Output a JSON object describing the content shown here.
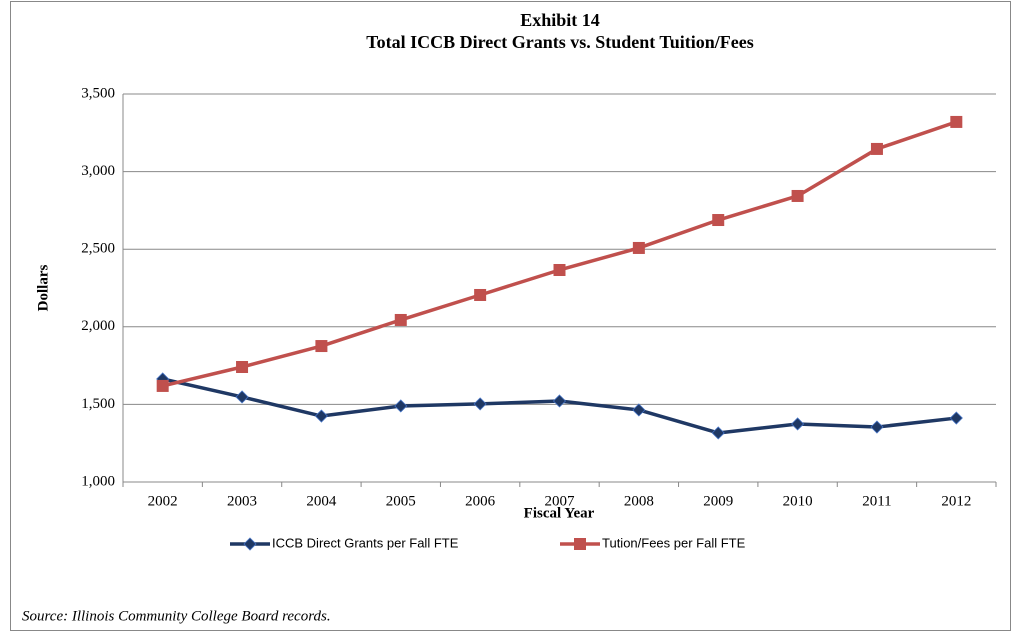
{
  "chart_data": {
    "type": "line",
    "title": "Exhibit 14",
    "subtitle": "Total ICCB Direct Grants vs. Student Tuition/Fees",
    "x_label": "Fiscal Year",
    "y_label": "Dollars",
    "source": "Source:  Illinois Community College Board records.",
    "categories": [
      "2002",
      "2003",
      "2004",
      "2005",
      "2006",
      "2007",
      "2008",
      "2009",
      "2010",
      "2011",
      "2012"
    ],
    "series": [
      {
        "name": "ICCB Direct Grants  per Fall FTE",
        "color": "#1f3864",
        "marker": "diamond",
        "values": [
          1664,
          1548,
          1425,
          1490,
          1503,
          1522,
          1464,
          1316,
          1374,
          1354,
          1412
        ]
      },
      {
        "name": "Tution/Fees per Fall FTE",
        "color": "#c0504d",
        "marker": "square",
        "values": [
          1619,
          1741,
          1876,
          2044,
          2205,
          2366,
          2508,
          2688,
          2843,
          3146,
          3320
        ]
      }
    ],
    "ylim": [
      1000,
      3500
    ],
    "yticks": [
      {
        "value": 1000,
        "label": "1,000"
      },
      {
        "value": 1500,
        "label": "1,500"
      },
      {
        "value": 2000,
        "label": "2,000"
      },
      {
        "value": 2500,
        "label": "2,500"
      },
      {
        "value": 3000,
        "label": "3,000"
      },
      {
        "value": 3500,
        "label": "3,500"
      }
    ],
    "grid": true,
    "legend": "bottom"
  }
}
